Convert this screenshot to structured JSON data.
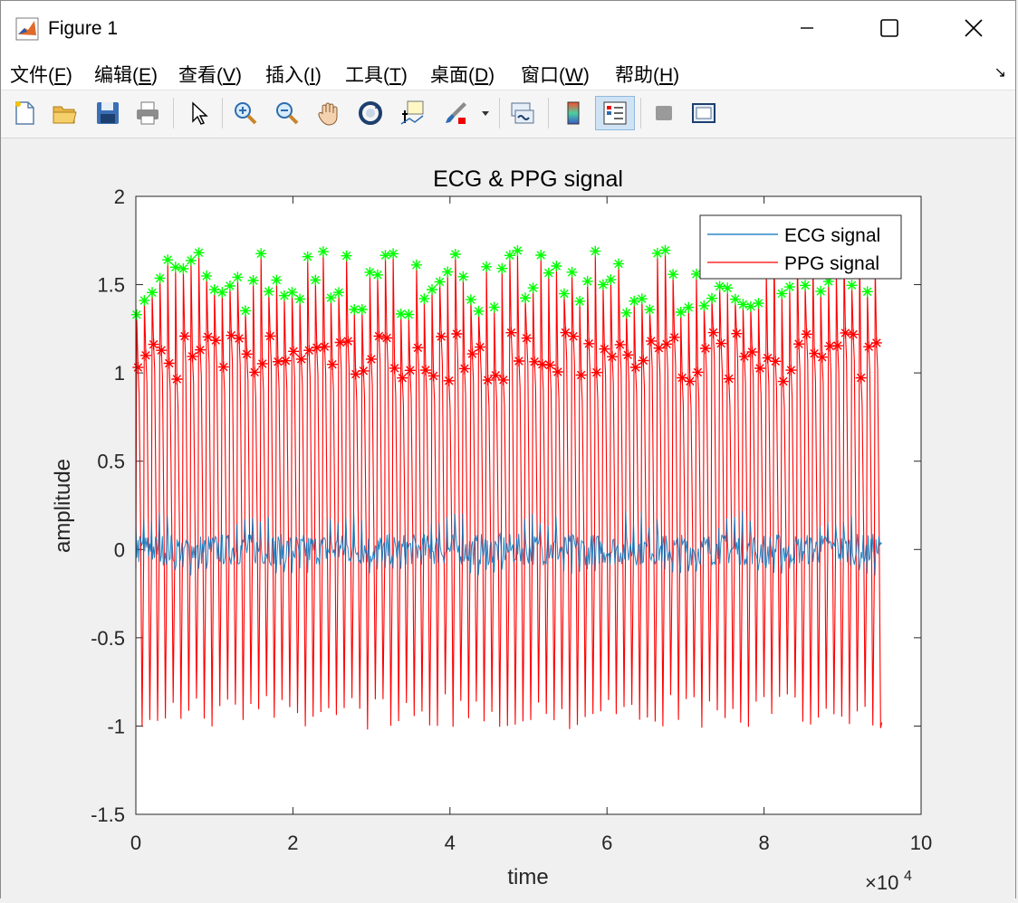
{
  "window": {
    "title": "Figure 1"
  },
  "menu": [
    {
      "text": "文件(",
      "key": "F",
      "end": ")"
    },
    {
      "text": "编辑(",
      "key": "E",
      "end": ")"
    },
    {
      "text": "查看(",
      "key": "V",
      "end": ")"
    },
    {
      "text": "插入(",
      "key": "I",
      "end": ")"
    },
    {
      "text": "工具(",
      "key": "T",
      "end": ")"
    },
    {
      "text": "桌面(",
      "key": "D",
      "end": ")"
    },
    {
      "text": "窗口(",
      "key": "W",
      "end": ")"
    },
    {
      "text": "帮助(",
      "key": "H",
      "end": ")"
    }
  ],
  "toolbar": [
    "new-file",
    "open-folder",
    "save",
    "print",
    "pointer",
    "zoom-in",
    "zoom-out",
    "pan",
    "rotate-3d",
    "data-cursor",
    "brush",
    "link-plot",
    "colorbar",
    "legend",
    "hide-plot-tools",
    "show-plot-tools"
  ],
  "colors": {
    "ecg": "#0072bd",
    "ppg": "#ff0000",
    "peak_green": "#00ff00",
    "peak_red": "#ff0000"
  },
  "chart_data": {
    "type": "line",
    "title": "ECG & PPG signal",
    "xlabel": "time",
    "ylabel": "amplitude",
    "x_exponent_label": "×10",
    "x_exponent": "4",
    "xlim": [
      0,
      100000
    ],
    "ylim": [
      -1.5,
      2
    ],
    "xticks": [
      0,
      20000,
      40000,
      60000,
      80000,
      100000
    ],
    "xtick_labels": [
      "0",
      "2",
      "4",
      "6",
      "8",
      "10"
    ],
    "yticks": [
      -1.5,
      -1,
      -0.5,
      0,
      0.5,
      1,
      1.5,
      2
    ],
    "ytick_labels": [
      "-1.5",
      "-1",
      "-0.5",
      "0",
      "0.5",
      "1",
      "1.5",
      "2"
    ],
    "legend_position": "top-right",
    "legend": [
      "ECG signal",
      "PPG signal"
    ],
    "series": [
      {
        "name": "ECG signal",
        "x_range": [
          0,
          95000
        ],
        "approx_range": [
          -0.18,
          0.22
        ],
        "pattern": "dense quasi-periodic oscillation around 0"
      },
      {
        "name": "PPG signal",
        "x_range": [
          0,
          95000
        ],
        "approx_range": [
          -1.03,
          1.72
        ],
        "pattern": "periodic pulses, ~96 beats",
        "peak_period": 990,
        "peak_count": 96
      }
    ],
    "peak_markers": [
      {
        "marker": "*",
        "color": "green",
        "approx_y_range": [
          1.22,
          1.72
        ],
        "on": "systolic peaks"
      },
      {
        "marker": "*",
        "color": "red",
        "approx_y_range": [
          0.94,
          1.24
        ],
        "on": "secondary peaks"
      }
    ]
  }
}
